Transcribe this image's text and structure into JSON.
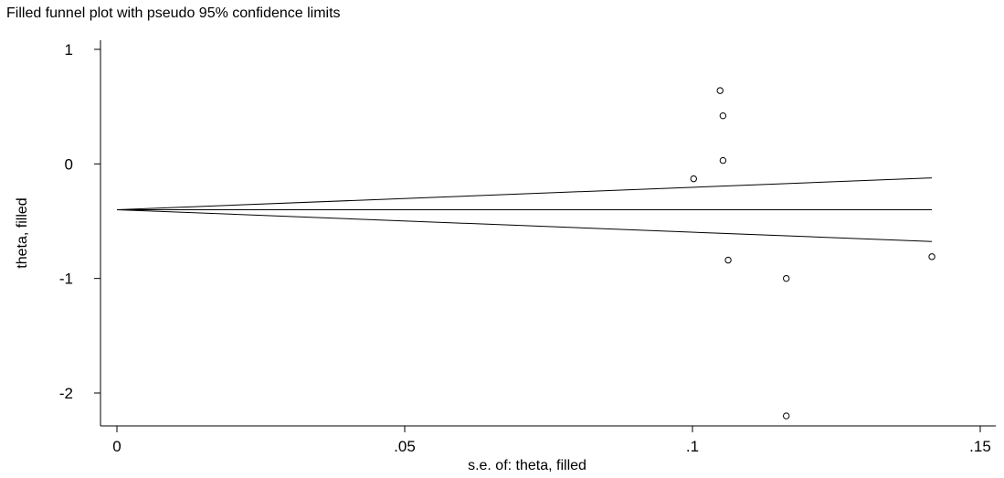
{
  "chart_data": {
    "type": "scatter",
    "title": "Filled funnel plot with pseudo 95% confidence limits",
    "xlabel": "s.e. of: theta, filled",
    "ylabel": "theta, filled",
    "xlim": [
      -0.003,
      0.15
    ],
    "ylim": [
      -2.3,
      1.1
    ],
    "x_ticks": [
      0,
      0.05,
      0.1,
      0.15
    ],
    "x_tick_labels": [
      "0",
      ".05",
      ".1",
      ".15"
    ],
    "y_ticks": [
      1,
      0,
      -1,
      -2
    ],
    "y_tick_labels": [
      "1",
      "0",
      "-1",
      "-2"
    ],
    "grid": false,
    "pooled_estimate": -0.4,
    "line_x_max": 0.1416,
    "points": [
      {
        "x": 0.1048,
        "y": 0.64
      },
      {
        "x": 0.1053,
        "y": 0.42
      },
      {
        "x": 0.1053,
        "y": 0.03
      },
      {
        "x": 0.1002,
        "y": -0.13
      },
      {
        "x": 0.1062,
        "y": -0.84
      },
      {
        "x": 0.1163,
        "y": -1.0
      },
      {
        "x": 0.1416,
        "y": -0.81
      },
      {
        "x": 0.1163,
        "y": -2.2
      }
    ]
  }
}
